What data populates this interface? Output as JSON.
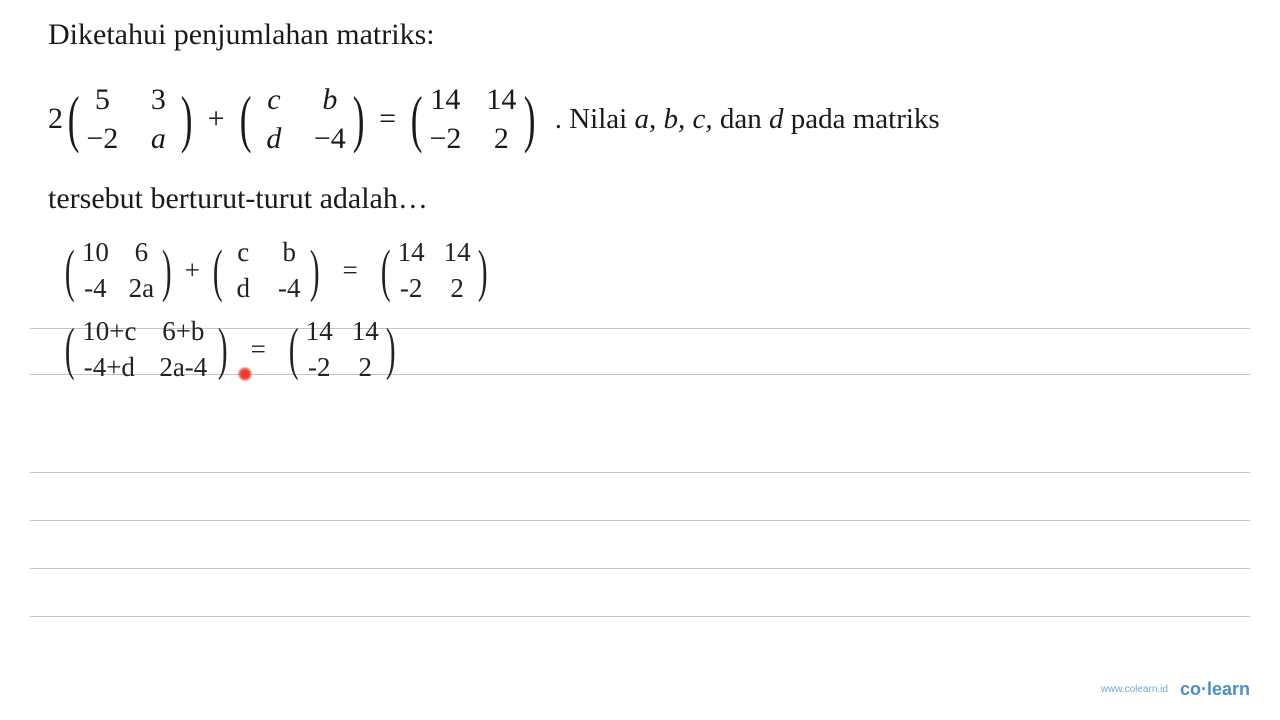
{
  "text": {
    "line1": "Diketahui penjumlahan matriks:",
    "line3_prefix": ". Nilai ",
    "line3_vars": "a, b, c,",
    "line3_mid": " dan ",
    "line3_d": "d",
    "line3_end": " pada matriks",
    "line4": "tersebut berturut-turut adalah…"
  },
  "printed": {
    "scalar": "2",
    "m1": {
      "r1c1": "5",
      "r1c2": "3",
      "r2c1": "−2",
      "r2c2": "a"
    },
    "plus": "+",
    "m2": {
      "r1c1": "c",
      "r1c2": "b",
      "r2c1": "d",
      "r2c2": "−4"
    },
    "eq": "=",
    "m3": {
      "r1c1": "14",
      "r1c2": "14",
      "r2c1": "−2",
      "r2c2": "2"
    }
  },
  "handwriting": {
    "row1": {
      "m1": {
        "r1c1": "10",
        "r1c2": "6",
        "r2c1": "-4",
        "r2c2": "2a"
      },
      "plus": "+",
      "m2": {
        "r1c1": "c",
        "r1c2": "b",
        "r2c1": "d",
        "r2c2": "-4"
      },
      "eq": "=",
      "m3": {
        "r1c1": "14",
        "r1c2": "14",
        "r2c1": "-2",
        "r2c2": "2"
      }
    },
    "row2": {
      "m1": {
        "r1c1": "10+c",
        "r1c2": "6+b",
        "r2c1": "-4+d",
        "r2c2": "2a-4"
      },
      "eq": "=",
      "m2": {
        "r1c1": "14",
        "r1c2": "14",
        "r2c1": "-2",
        "r2c2": "2"
      }
    }
  },
  "footer": {
    "url": "www.colearn.id",
    "logo_co": "co",
    "logo_dot": "·",
    "logo_learn": "learn"
  },
  "style": {
    "text_color": "#1a1a1a",
    "handwriting_color": "#222222",
    "rule_color": "#c4c4c4",
    "red_dot_color": "#ef3a2a",
    "footer_color": "#4a8fc9",
    "footer_url_color": "#6fa8d8",
    "background": "#ffffff",
    "printed_fontsize": 30,
    "handwriting_fontsize": 27,
    "ruled_line_positions": [
      328,
      374,
      472,
      520,
      568,
      616
    ]
  }
}
